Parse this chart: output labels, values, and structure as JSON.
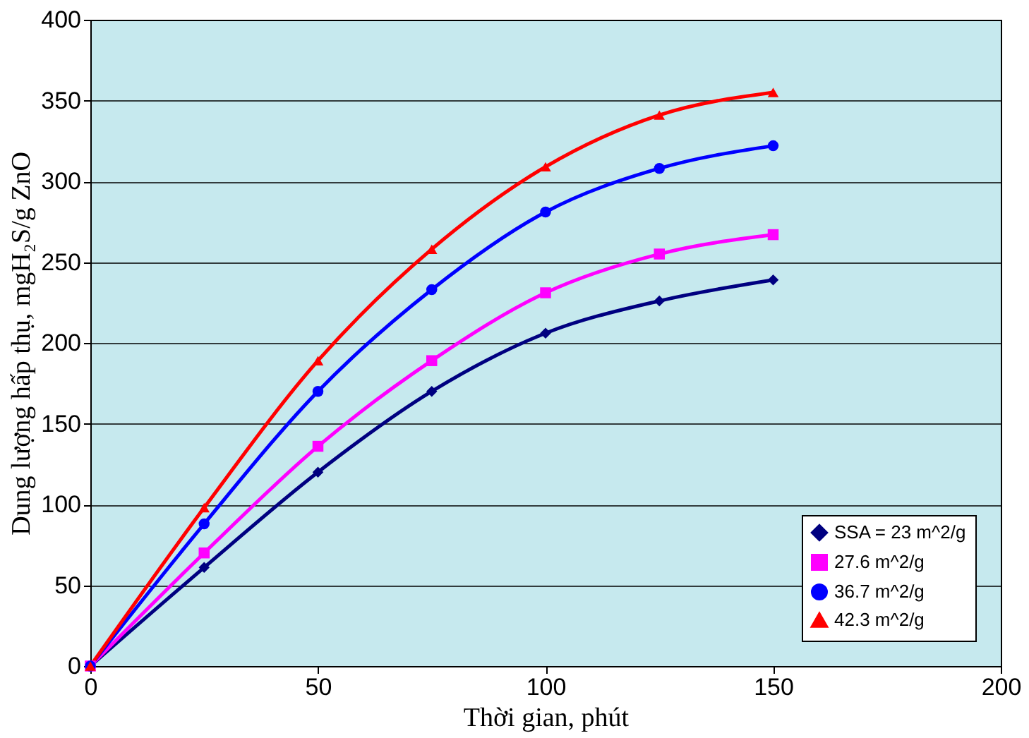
{
  "chart_data": {
    "type": "line",
    "xlabel": "Thời gian, phút",
    "ylabel": "Dung lượng hấp thụ, mgH₂S/g ZnO",
    "x": [
      0,
      25,
      50,
      75,
      100,
      125,
      150
    ],
    "series": [
      {
        "name": "SSA = 23 m^2/g",
        "color": "#000080",
        "marker": "diamond",
        "values": [
          0,
          61,
          120,
          170,
          206,
          226,
          239
        ]
      },
      {
        "name": "27.6 m^2/g",
        "color": "#ff00ff",
        "marker": "square",
        "values": [
          0,
          70,
          136,
          189,
          231,
          255,
          267
        ]
      },
      {
        "name": "36.7 m^2/g",
        "color": "#0000ff",
        "marker": "circle",
        "values": [
          0,
          88,
          170,
          233,
          281,
          308,
          322
        ]
      },
      {
        "name": "42.3 m^2/g",
        "color": "#ff0000",
        "marker": "triangle",
        "values": [
          0,
          98,
          189,
          258,
          309,
          341,
          355
        ]
      }
    ],
    "xlim": [
      0,
      200
    ],
    "xticks": [
      0,
      50,
      100,
      150,
      200
    ],
    "ylim": [
      0,
      400
    ],
    "yticks": [
      0,
      50,
      100,
      150,
      200,
      250,
      300,
      350,
      400
    ],
    "grid": "y",
    "legend": "bottom right",
    "line_style": "solid"
  }
}
